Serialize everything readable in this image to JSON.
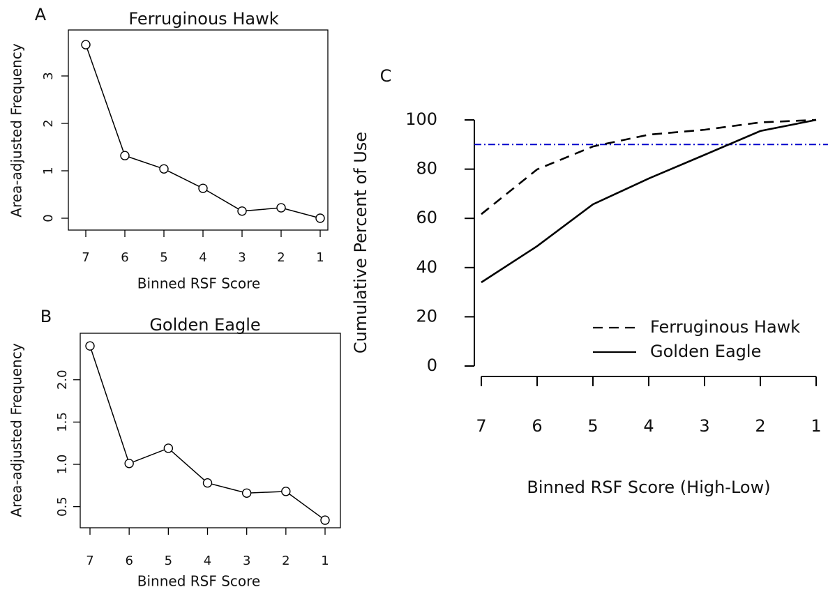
{
  "chart_data": [
    {
      "type": "line",
      "panel_label": "A",
      "title": "Ferruginous Hawk",
      "x_label": "Binned RSF Score",
      "y_label": "Area-adjusted Frequency",
      "categories": [
        "7",
        "6",
        "5",
        "4",
        "3",
        "2",
        "1"
      ],
      "values": [
        3.66,
        1.32,
        1.04,
        0.63,
        0.15,
        0.22,
        0.0
      ],
      "color": "#000000",
      "marker": "circle",
      "ylim": [
        -0.25,
        3.97
      ],
      "yticks": [
        0,
        1,
        2,
        3
      ]
    },
    {
      "type": "line",
      "panel_label": "B",
      "title": "Golden Eagle",
      "x_label": "Binned RSF Score",
      "y_label": "Area-adjusted Frequency",
      "categories": [
        "7",
        "6",
        "5",
        "4",
        "3",
        "2",
        "1"
      ],
      "values": [
        2.4,
        1.01,
        1.19,
        0.78,
        0.66,
        0.68,
        0.34
      ],
      "color": "#000000",
      "marker": "circle",
      "ylim": [
        0.25,
        2.55
      ],
      "yticks": [
        0.5,
        {
          "value": 1,
          "label": "1.0"
        },
        1.5,
        {
          "value": 2,
          "label": "2.0"
        }
      ]
    },
    {
      "type": "line",
      "panel_label": "C",
      "x_label": "Binned RSF Score (High-Low)",
      "y_label": "Cumulative Percent of Use",
      "categories": [
        "7",
        "6",
        "5",
        "4",
        "3",
        "2",
        "1"
      ],
      "series": [
        {
          "name": "Ferruginous Hawk",
          "color": "#000000",
          "linestyle": "dashed",
          "values": [
            61.7,
            79.9,
            89.2,
            94,
            96,
            99,
            100
          ]
        },
        {
          "name": "Golden Eagle",
          "color": "#000000",
          "linestyle": "solid",
          "values": [
            34,
            48.7,
            65.7,
            76.2,
            85.8,
            95.5,
            100
          ]
        }
      ],
      "hline": 90,
      "hline_color": "#0000cc",
      "ylim": [
        0,
        100
      ],
      "yticks": [
        0,
        20,
        40,
        60,
        80,
        100
      ],
      "legend": "lower right"
    }
  ]
}
